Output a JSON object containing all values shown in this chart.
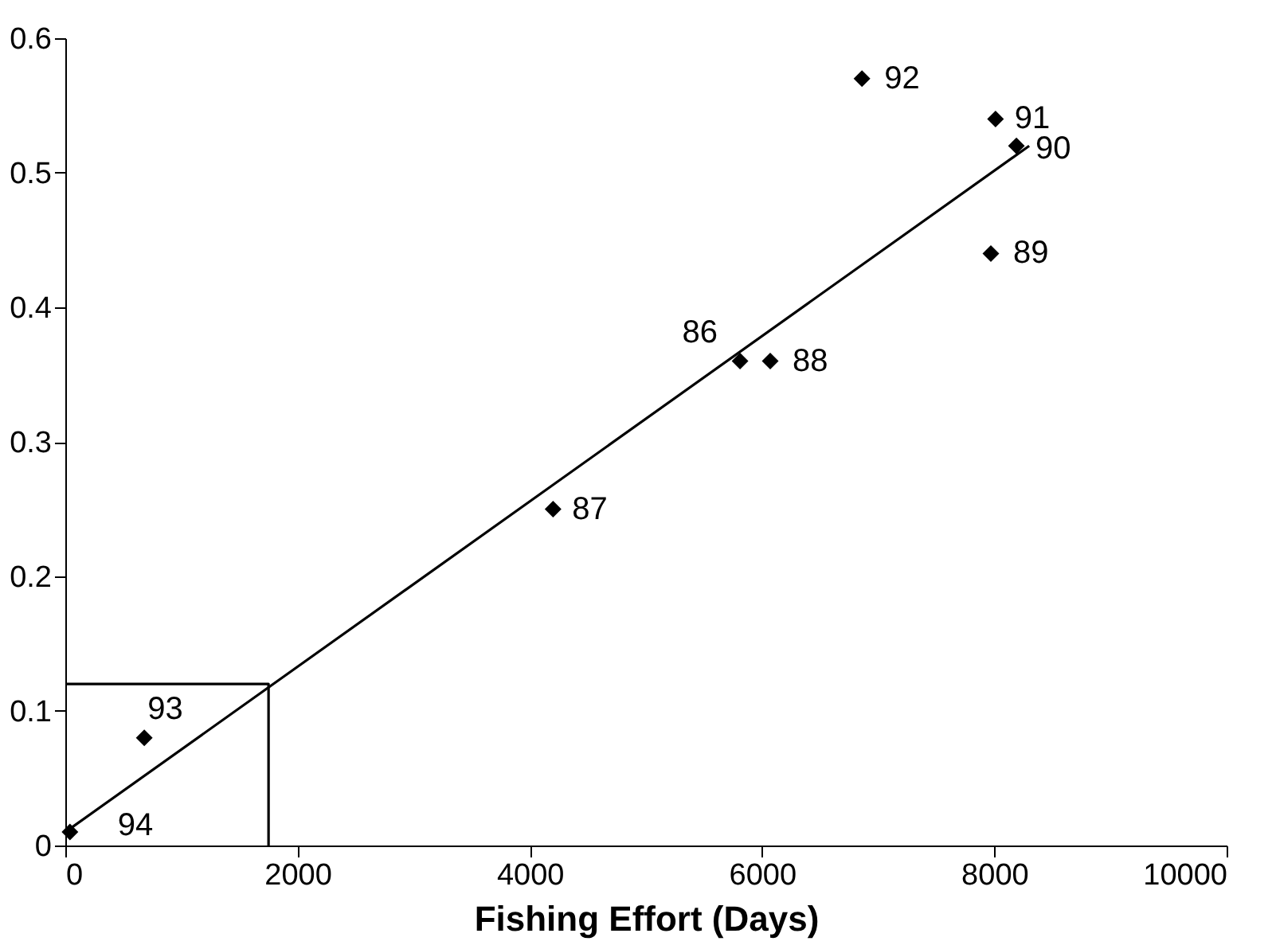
{
  "chart_data": {
    "type": "scatter",
    "xlabel": "Fishing Effort (Days)",
    "xlim": [
      0,
      10000
    ],
    "xticks": [
      0,
      2000,
      4000,
      6000,
      8000,
      10000
    ],
    "ylim": [
      0,
      0.6
    ],
    "yticks": [
      0,
      0.1,
      0.2,
      0.3,
      0.4,
      0.5,
      0.6
    ],
    "grid": false,
    "legend": false,
    "marker": "diamond",
    "series": [
      {
        "color": "#000000",
        "x": [
          40,
          680,
          4200,
          5810,
          6070,
          6860,
          8010,
          8190,
          7970
        ],
        "values": [
          0.01,
          0.08,
          0.25,
          0.36,
          0.36,
          0.57,
          0.54,
          0.52,
          0.44
        ]
      },
      {
        "type": "line",
        "color": "#000000",
        "marker": "none",
        "x": [
          0,
          8300
        ],
        "values": [
          0.01,
          0.52
        ]
      },
      {
        "type": "line",
        "color": "#000000",
        "marker": "none",
        "x": [
          0,
          1750,
          1750
        ],
        "values": [
          0.12,
          0.12,
          0
        ]
      }
    ],
    "annotations": [
      {
        "text": "94",
        "x": 40,
        "y": 0.01
      },
      {
        "text": "93",
        "x": 680,
        "y": 0.08
      },
      {
        "text": "87",
        "x": 4200,
        "y": 0.25
      },
      {
        "text": "86",
        "x": 5810,
        "y": 0.36
      },
      {
        "text": "88",
        "x": 6070,
        "y": 0.36
      },
      {
        "text": "92",
        "x": 6860,
        "y": 0.57
      },
      {
        "text": "91",
        "x": 8010,
        "y": 0.54
      },
      {
        "text": "90",
        "x": 8190,
        "y": 0.52
      },
      {
        "text": "89",
        "x": 7970,
        "y": 0.44
      }
    ]
  }
}
